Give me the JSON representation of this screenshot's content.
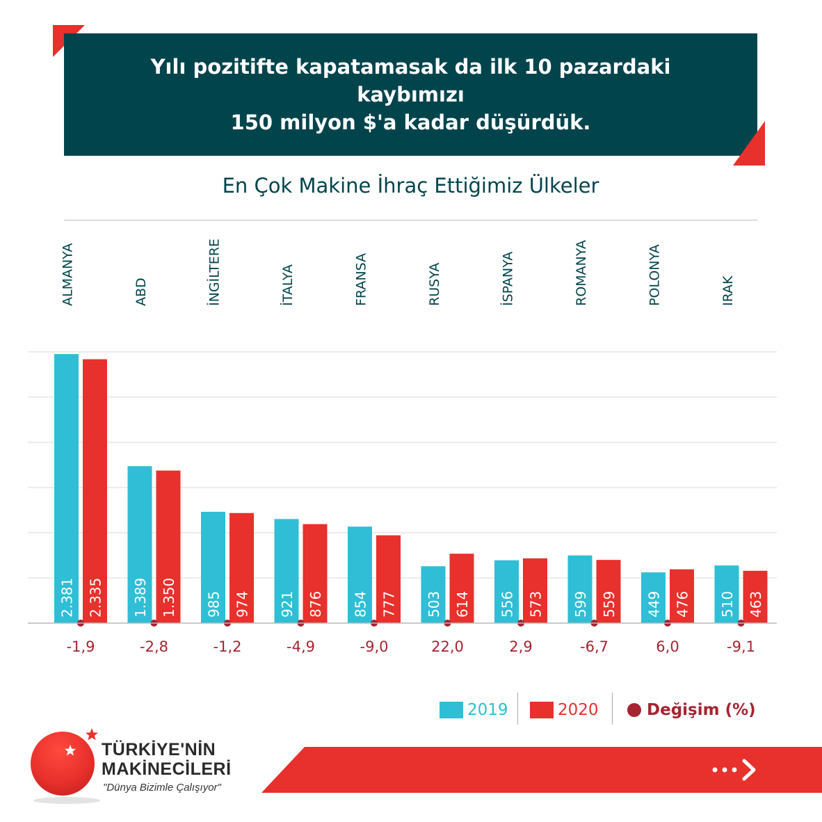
{
  "header": {
    "line1": "Yılı pozitifte kapatamasak da ilk 10 pazardaki kaybımızı",
    "line2": "150 milyon $'a kadar düşürdük."
  },
  "chart_data": {
    "type": "bar",
    "title": "En Çok Makine İhraç Ettiğimiz Ülkeler",
    "categories": [
      "ALMANYA",
      "ABD",
      "İNGİLTERE",
      "İTALYA",
      "FRANSA",
      "RUSYA",
      "İSPANYA",
      "ROMANYA",
      "POLONYA",
      "IRAK"
    ],
    "series": [
      {
        "name": "2019",
        "color": "#2fbed6",
        "values": [
          2381,
          1389,
          985,
          921,
          854,
          503,
          556,
          599,
          449,
          510
        ],
        "labels": [
          "2.381",
          "1.389",
          "985",
          "921",
          "854",
          "503",
          "556",
          "599",
          "449",
          "510"
        ]
      },
      {
        "name": "2020",
        "color": "#e8302c",
        "values": [
          2335,
          1350,
          974,
          876,
          777,
          614,
          573,
          559,
          476,
          463
        ],
        "labels": [
          "2.335",
          "1.350",
          "974",
          "876",
          "777",
          "614",
          "573",
          "559",
          "476",
          "463"
        ]
      }
    ],
    "change": {
      "name": "Değişim (%)",
      "color": "#a52431",
      "values": [
        -1.9,
        -2.8,
        -1.2,
        -4.9,
        -9.0,
        22.0,
        2.9,
        -6.7,
        6.0,
        -9.1
      ],
      "labels": [
        "-1,9",
        "-2,8",
        "-1,2",
        "-4,9",
        "-9,0",
        "22,0",
        "2,9",
        "-6,7",
        "6,0",
        "-9,1"
      ]
    },
    "ylim": [
      0,
      2400
    ],
    "grid": true,
    "legend_position": "bottom-right"
  },
  "legend": {
    "item1": "2019",
    "item2": "2020",
    "item3": "Değişim (%)"
  },
  "brand": {
    "name_line1": "TÜRKİYE'NİN",
    "name_line2": "MAKİNECİLERİ",
    "slogan": "\"Dünya Bizimle Çalışıyor\""
  },
  "colors": {
    "header_bg": "#02444c",
    "accent": "#e8302c",
    "bar_2019": "#2fbed6",
    "bar_2020": "#e8302c",
    "change_dot": "#a52431"
  },
  "icons": {
    "footer_arrow": "dots-chevron-right-icon",
    "logo_star": "star-icon"
  }
}
